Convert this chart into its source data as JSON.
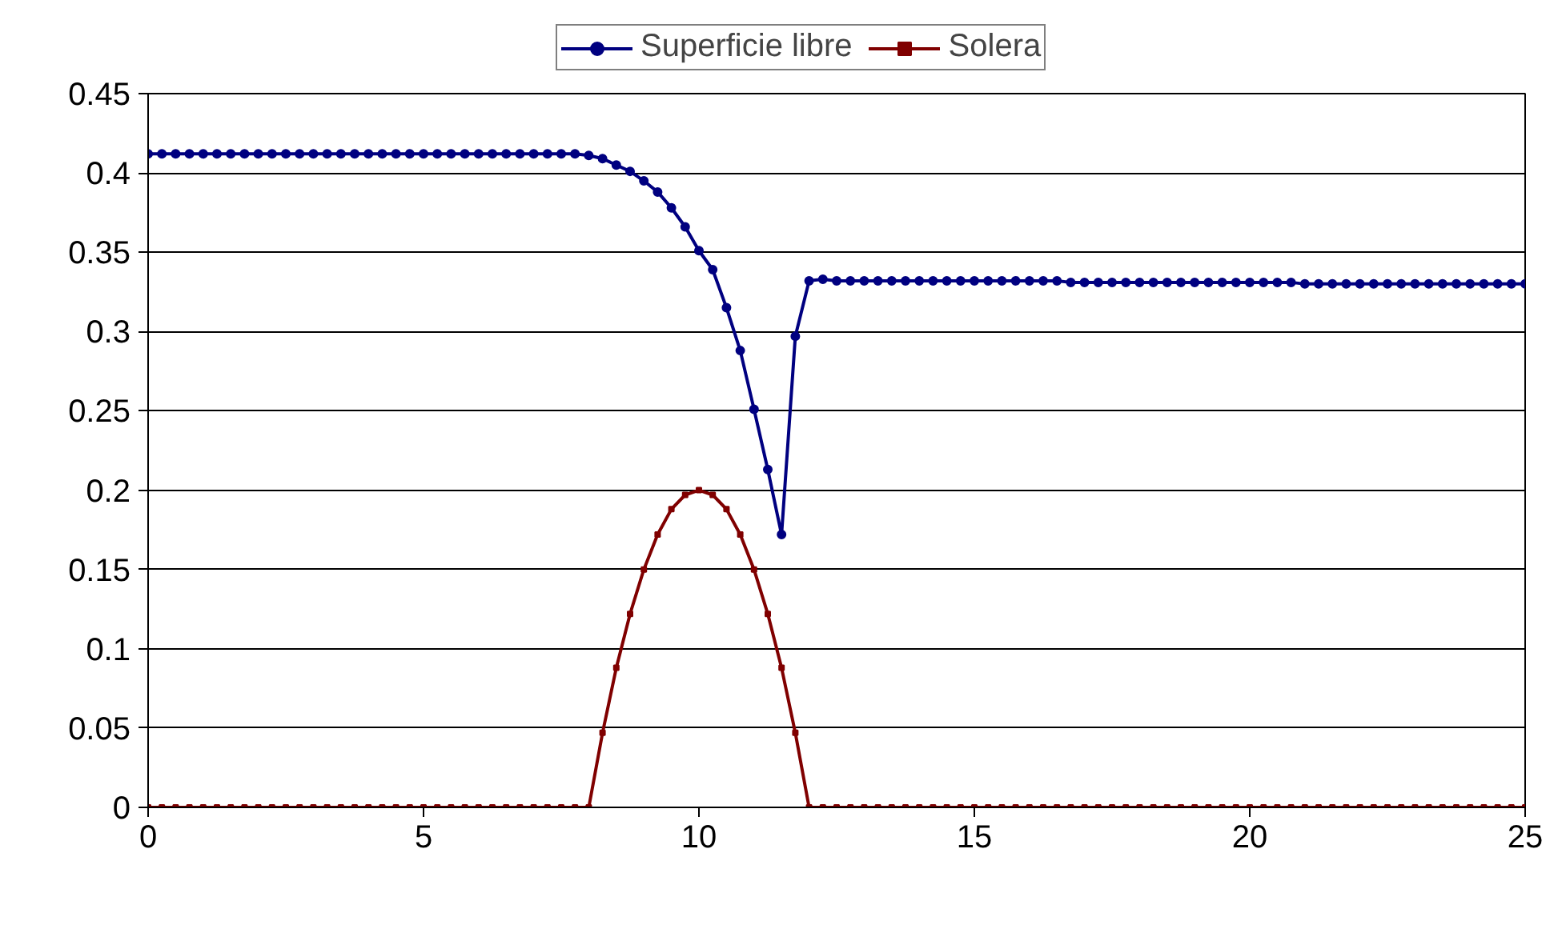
{
  "chart_data": {
    "type": "line",
    "x": [
      0,
      0.25,
      0.5,
      0.75,
      1,
      1.25,
      1.5,
      1.75,
      2,
      2.25,
      2.5,
      2.75,
      3,
      3.25,
      3.5,
      3.75,
      4,
      4.25,
      4.5,
      4.75,
      5,
      5.25,
      5.5,
      5.75,
      6,
      6.25,
      6.5,
      6.75,
      7,
      7.25,
      7.5,
      7.75,
      8,
      8.25,
      8.5,
      8.75,
      9,
      9.25,
      9.5,
      9.75,
      10,
      10.25,
      10.5,
      10.75,
      11,
      11.25,
      11.5,
      11.75,
      12,
      12.25,
      12.5,
      12.75,
      13,
      13.25,
      13.5,
      13.75,
      14,
      14.25,
      14.5,
      14.75,
      15,
      15.25,
      15.5,
      15.75,
      16,
      16.25,
      16.5,
      16.75,
      17,
      17.25,
      17.5,
      17.75,
      18,
      18.25,
      18.5,
      18.75,
      19,
      19.25,
      19.5,
      19.75,
      20,
      20.25,
      20.5,
      20.75,
      21,
      21.25,
      21.5,
      21.75,
      22,
      22.25,
      22.5,
      22.75,
      23,
      23.25,
      23.5,
      23.75,
      24,
      24.25,
      24.5,
      24.75,
      25
    ],
    "series": [
      {
        "name": "Superficie libre",
        "color": "#000080",
        "marker": "circle",
        "values": [
          0.412,
          0.412,
          0.412,
          0.412,
          0.412,
          0.412,
          0.412,
          0.412,
          0.412,
          0.412,
          0.412,
          0.412,
          0.412,
          0.412,
          0.412,
          0.412,
          0.412,
          0.412,
          0.412,
          0.412,
          0.412,
          0.412,
          0.412,
          0.412,
          0.412,
          0.412,
          0.412,
          0.412,
          0.412,
          0.412,
          0.412,
          0.412,
          0.411,
          0.409,
          0.405,
          0.401,
          0.395,
          0.388,
          0.378,
          0.366,
          0.351,
          0.339,
          0.315,
          0.288,
          0.251,
          0.213,
          0.172,
          0.297,
          0.332,
          0.333,
          0.332,
          0.332,
          0.332,
          0.332,
          0.332,
          0.332,
          0.332,
          0.332,
          0.332,
          0.332,
          0.332,
          0.332,
          0.332,
          0.332,
          0.332,
          0.332,
          0.332,
          0.331,
          0.331,
          0.331,
          0.331,
          0.331,
          0.331,
          0.331,
          0.331,
          0.331,
          0.331,
          0.331,
          0.331,
          0.331,
          0.331,
          0.331,
          0.331,
          0.331,
          0.33,
          0.33,
          0.33,
          0.33,
          0.33,
          0.33,
          0.33,
          0.33,
          0.33,
          0.33,
          0.33,
          0.33,
          0.33,
          0.33,
          0.33,
          0.33,
          0.33
        ]
      },
      {
        "name": "Solera",
        "color": "#800000",
        "marker": "square",
        "values": [
          0,
          0,
          0,
          0,
          0,
          0,
          0,
          0,
          0,
          0,
          0,
          0,
          0,
          0,
          0,
          0,
          0,
          0,
          0,
          0,
          0,
          0,
          0,
          0,
          0,
          0,
          0,
          0,
          0,
          0,
          0,
          0,
          0,
          0.047,
          0.088,
          0.122,
          0.15,
          0.172,
          0.188,
          0.197,
          0.2,
          0.197,
          0.188,
          0.172,
          0.15,
          0.122,
          0.088,
          0.047,
          0,
          0,
          0,
          0,
          0,
          0,
          0,
          0,
          0,
          0,
          0,
          0,
          0,
          0,
          0,
          0,
          0,
          0,
          0,
          0,
          0,
          0,
          0,
          0,
          0,
          0,
          0,
          0,
          0,
          0,
          0,
          0,
          0,
          0,
          0,
          0,
          0,
          0,
          0,
          0,
          0,
          0,
          0,
          0,
          0,
          0,
          0,
          0,
          0,
          0,
          0,
          0,
          0
        ]
      }
    ],
    "xlim": [
      0,
      25
    ],
    "xticks": [
      0,
      5,
      10,
      15,
      20,
      25
    ],
    "ylim": [
      0,
      0.45
    ],
    "yticks": [
      0,
      0.05,
      0.1,
      0.15,
      0.2,
      0.25,
      0.3,
      0.35,
      0.4,
      0.45
    ],
    "grid": "y",
    "legend": "top",
    "line_style": "solid"
  }
}
